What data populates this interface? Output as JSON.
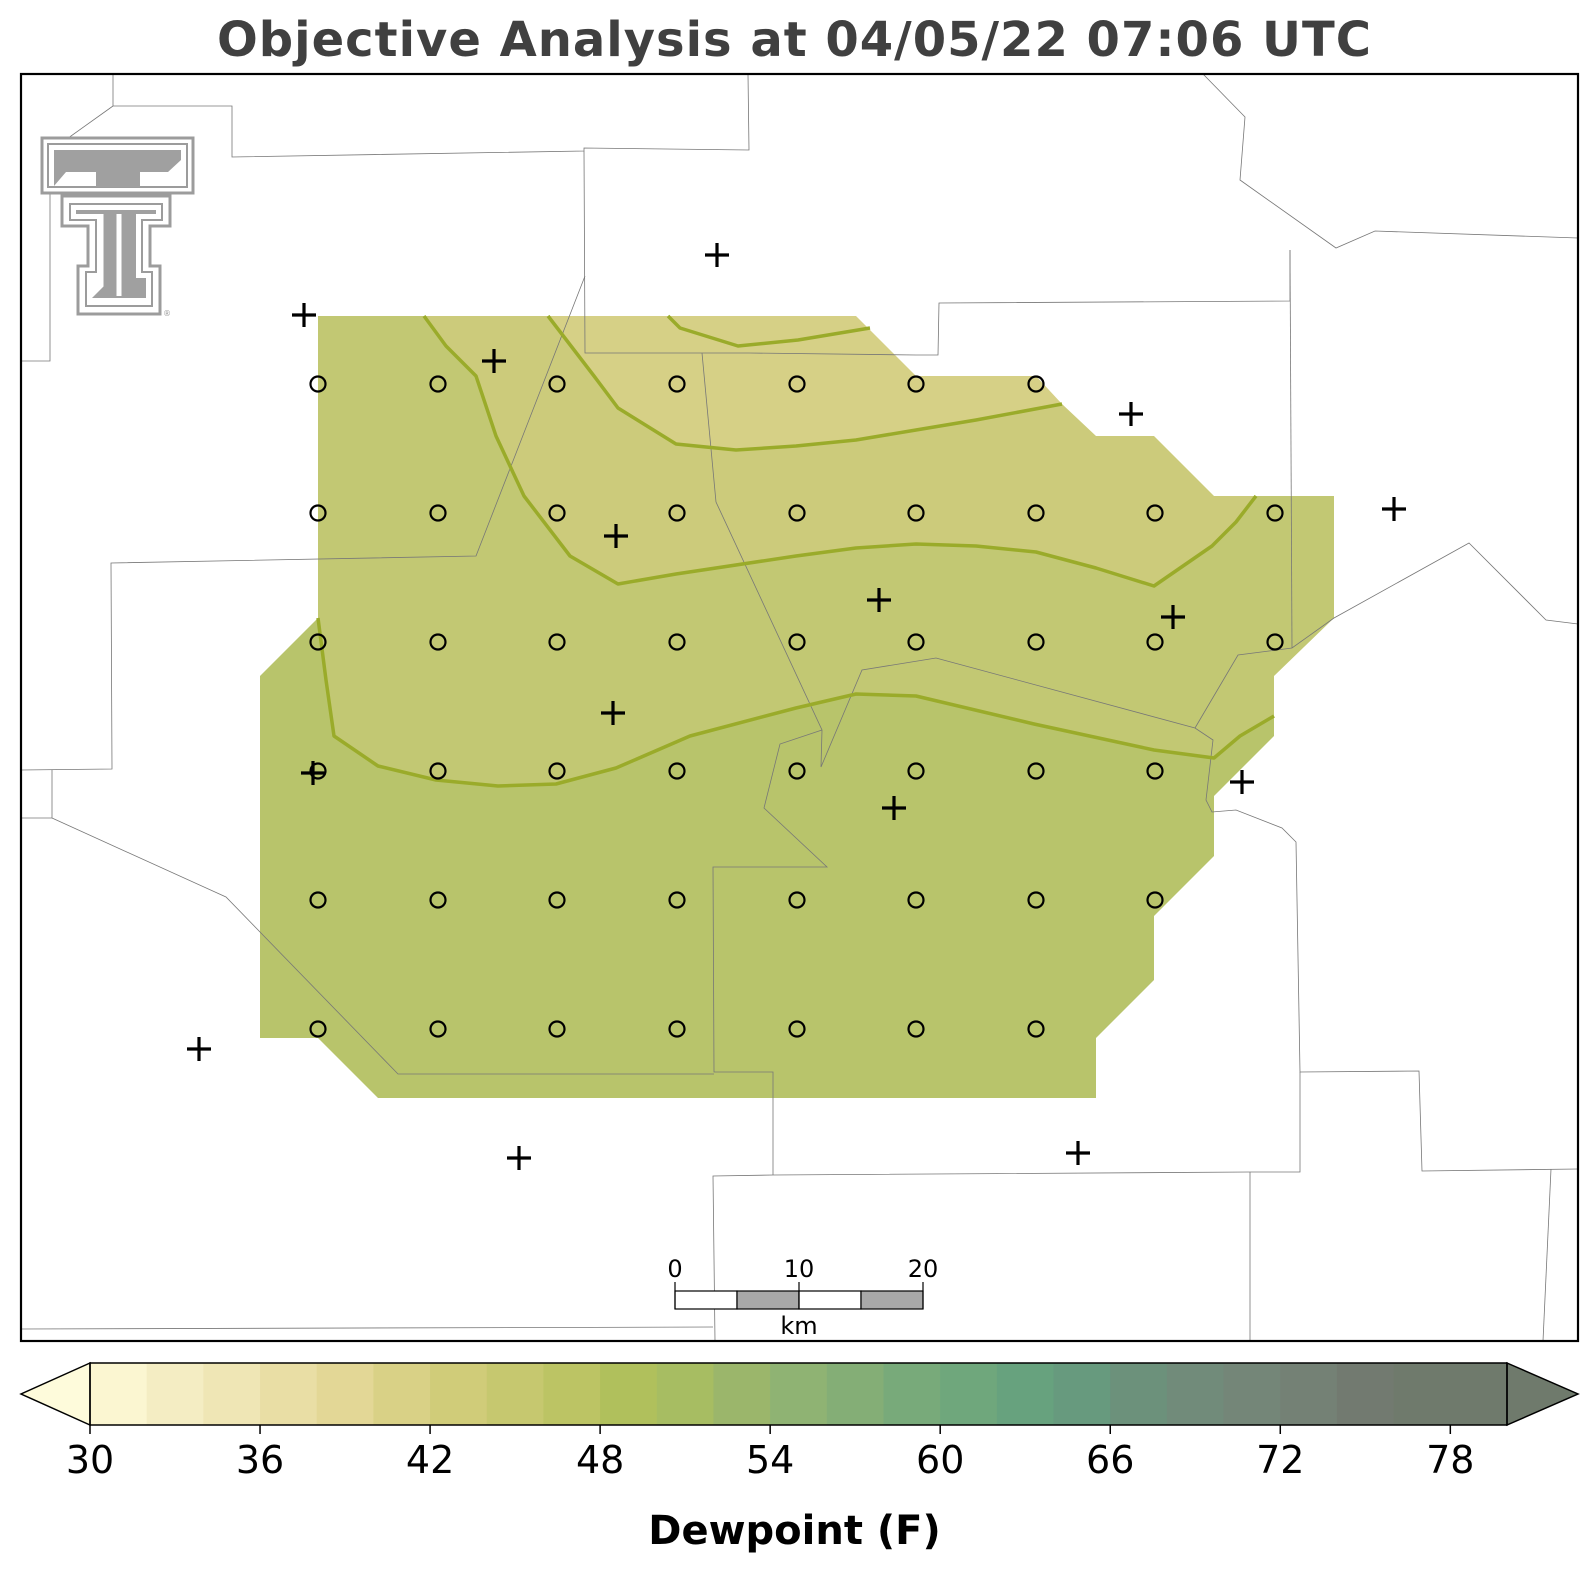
{
  "title": "Objective Analysis at 04/05/22 07:06 UTC",
  "colorbar": {
    "label": "Dewpoint (F)",
    "min": 30,
    "max": 80,
    "step": 2,
    "tick_values": [
      30,
      36,
      42,
      48,
      54,
      60,
      66,
      72,
      78
    ],
    "tick_labels": [
      "30",
      "36",
      "42",
      "48",
      "54",
      "60",
      "66",
      "72",
      "78"
    ],
    "colors": [
      "#fefbdb",
      "#fbf6d1",
      "#f4edc3",
      "#efe6b5",
      "#e9dea5",
      "#e3d796",
      "#d9d186",
      "#d0cc79",
      "#c6c86f",
      "#bcc464",
      "#b0c05c",
      "#a7bd62",
      "#9bb66b",
      "#8fb373",
      "#84ae76",
      "#78aa7a",
      "#6fa77c",
      "#67a27e",
      "#679a7e",
      "#6c917b",
      "#718b7a",
      "#748678",
      "#748175",
      "#727a70",
      "#6f7a6c"
    ]
  },
  "scale_bar": {
    "labels": [
      "0",
      "10",
      "20"
    ],
    "unit": "km"
  },
  "logo": {
    "icon": "texas-tech-double-t-logo",
    "color": "#a0a0a0"
  },
  "map": {
    "analysis_levels_F": [
      44,
      46,
      48,
      50,
      52
    ],
    "regions": [
      {
        "name": "dewpoint-44-46-region",
        "value_range": [
          44,
          46
        ],
        "color": "#d6d086"
      },
      {
        "name": "dewpoint-46-48-region",
        "value_range": [
          46,
          48
        ],
        "color": "#cccb7b"
      },
      {
        "name": "dewpoint-48-50-region",
        "value_range": [
          48,
          50
        ],
        "color": "#c2c873"
      },
      {
        "name": "dewpoint-50-52-region",
        "value_range": [
          50,
          52
        ],
        "color": "#b8c46b"
      }
    ],
    "contour_color": "#9aab2a",
    "station_marker": "plus-icon",
    "grid_marker": "circle-icon"
  }
}
